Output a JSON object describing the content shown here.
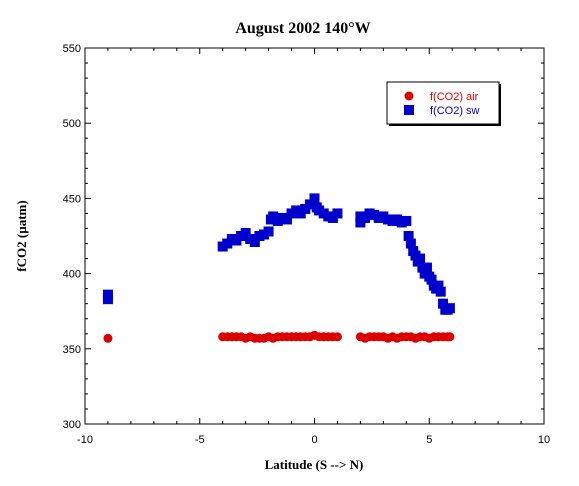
{
  "chart_data": {
    "type": "scatter",
    "title": "August 2002 140°W",
    "xlabel": "Latitude (S --> N)",
    "ylabel": "fCO2 (µatm)",
    "xlim": [
      -10,
      10
    ],
    "ylim": [
      300,
      550
    ],
    "xticks": [
      -10,
      -5,
      0,
      5,
      10
    ],
    "yticks": [
      300,
      350,
      400,
      450,
      500,
      550
    ],
    "grid": false,
    "legend_position": "top-right",
    "series": [
      {
        "name": "f(CO2) air",
        "marker": "circle",
        "color": "#dd0000",
        "text_color": "#dd0000",
        "x": [
          -9.0,
          -4.0,
          -3.8,
          -3.6,
          -3.4,
          -3.2,
          -3.0,
          -2.8,
          -2.6,
          -2.4,
          -2.2,
          -2.0,
          -1.8,
          -1.6,
          -1.4,
          -1.2,
          -1.0,
          -0.8,
          -0.6,
          -0.4,
          -0.2,
          0.0,
          0.2,
          0.4,
          0.6,
          0.8,
          1.0,
          2.0,
          2.2,
          2.4,
          2.6,
          2.8,
          3.0,
          3.2,
          3.4,
          3.6,
          3.8,
          4.0,
          4.2,
          4.4,
          4.6,
          4.8,
          5.0,
          5.2,
          5.4,
          5.6,
          5.8,
          5.9
        ],
        "y": [
          357,
          358,
          358,
          358,
          358,
          358,
          357,
          358,
          357,
          357,
          357,
          358,
          357,
          358,
          358,
          358,
          358,
          358,
          358,
          358,
          358,
          359,
          358,
          358,
          358,
          358,
          358,
          358,
          357,
          358,
          358,
          358,
          358,
          357,
          358,
          357,
          358,
          358,
          358,
          357,
          358,
          358,
          357,
          358,
          358,
          358,
          358,
          358
        ]
      },
      {
        "name": "f(CO2) sw",
        "marker": "square",
        "color": "#0000cc",
        "text_color": "#0000cc",
        "x": [
          -9.0,
          -9.0,
          -4.0,
          -3.8,
          -3.6,
          -3.4,
          -3.2,
          -3.0,
          -2.8,
          -2.6,
          -2.4,
          -2.2,
          -2.0,
          -1.9,
          -1.8,
          -1.6,
          -1.4,
          -1.2,
          -1.0,
          -0.8,
          -0.6,
          -0.4,
          -0.2,
          0.0,
          0.1,
          0.2,
          0.4,
          0.6,
          0.8,
          1.0,
          2.0,
          2.0,
          2.2,
          2.4,
          2.6,
          2.8,
          3.0,
          3.2,
          3.4,
          3.6,
          3.8,
          4.0,
          4.1,
          4.2,
          4.3,
          4.4,
          4.5,
          4.6,
          4.7,
          4.8,
          4.9,
          5.0,
          5.1,
          5.2,
          5.3,
          5.4,
          5.5,
          5.6,
          5.7,
          5.8,
          5.9
        ],
        "y": [
          383,
          386,
          418,
          420,
          423,
          422,
          425,
          427,
          423,
          421,
          425,
          426,
          428,
          436,
          438,
          435,
          437,
          436,
          440,
          442,
          440,
          443,
          446,
          450,
          444,
          442,
          440,
          438,
          437,
          440,
          434,
          438,
          437,
          440,
          439,
          437,
          438,
          436,
          435,
          436,
          434,
          435,
          425,
          420,
          415,
          412,
          408,
          410,
          404,
          400,
          404,
          398,
          396,
          392,
          390,
          392,
          388,
          380,
          376,
          376,
          377
        ]
      }
    ]
  }
}
